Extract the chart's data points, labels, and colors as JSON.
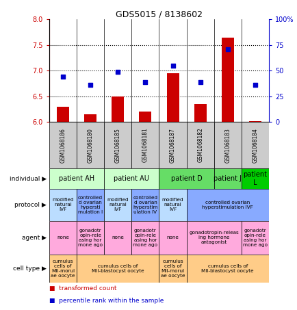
{
  "title": "GDS5015 / 8138602",
  "samples": [
    "GSM1068186",
    "GSM1068180",
    "GSM1068185",
    "GSM1068181",
    "GSM1068187",
    "GSM1068182",
    "GSM1068183",
    "GSM1068184"
  ],
  "bar_values": [
    6.3,
    6.15,
    6.5,
    6.2,
    6.95,
    6.35,
    7.65,
    6.02
  ],
  "dot_values": [
    6.88,
    6.72,
    6.98,
    6.78,
    7.1,
    6.78,
    7.42,
    6.72
  ],
  "ylim": [
    6.0,
    8.0
  ],
  "yticks": [
    6.0,
    6.5,
    7.0,
    7.5,
    8.0
  ],
  "y2ticks": [
    0,
    25,
    50,
    75,
    100
  ],
  "bar_color": "#cc0000",
  "dot_color": "#0000cc",
  "sample_bg_color": "#cccccc",
  "individual_row": {
    "groups": [
      {
        "label": "patient AH",
        "span": [
          0,
          2
        ],
        "color": "#ccffcc"
      },
      {
        "label": "patient AU",
        "span": [
          2,
          4
        ],
        "color": "#ccffcc"
      },
      {
        "label": "patient D",
        "span": [
          4,
          6
        ],
        "color": "#66dd66"
      },
      {
        "label": "patient J",
        "span": [
          6,
          7
        ],
        "color": "#66dd66"
      },
      {
        "label": "patient\nL",
        "span": [
          7,
          8
        ],
        "color": "#00cc00"
      }
    ]
  },
  "protocol_row": {
    "groups": [
      {
        "label": "modified\nnatural\nIVF",
        "span": [
          0,
          1
        ],
        "color": "#bbddff"
      },
      {
        "label": "controlled\nd ovarian\nhypersti\nmulation I",
        "span": [
          1,
          2
        ],
        "color": "#88aaff"
      },
      {
        "label": "modified\nnatural\nIVF",
        "span": [
          2,
          3
        ],
        "color": "#bbddff"
      },
      {
        "label": "controlled\nd ovarian\nhyperstim\nulation IV",
        "span": [
          3,
          4
        ],
        "color": "#88aaff"
      },
      {
        "label": "modified\nnatural\nIVF",
        "span": [
          4,
          5
        ],
        "color": "#bbddff"
      },
      {
        "label": "controlled ovarian\nhyperstimulation IVF",
        "span": [
          5,
          8
        ],
        "color": "#88aaff"
      }
    ]
  },
  "agent_row": {
    "groups": [
      {
        "label": "none",
        "span": [
          0,
          1
        ],
        "color": "#ffaadd"
      },
      {
        "label": "gonadotr\nopin-rele\nasing hor\nmone ago",
        "span": [
          1,
          2
        ],
        "color": "#ffaadd"
      },
      {
        "label": "none",
        "span": [
          2,
          3
        ],
        "color": "#ffaadd"
      },
      {
        "label": "gonadotr\nopin-rele\nasing hor\nmone ago",
        "span": [
          3,
          4
        ],
        "color": "#ffaadd"
      },
      {
        "label": "none",
        "span": [
          4,
          5
        ],
        "color": "#ffaadd"
      },
      {
        "label": "gonadotropin-releas\ning hormone\nantagonist",
        "span": [
          5,
          7
        ],
        "color": "#ffaadd"
      },
      {
        "label": "gonadotr\nopin-rele\nasing hor\nmone ago",
        "span": [
          7,
          8
        ],
        "color": "#ffaadd"
      }
    ]
  },
  "celltype_row": {
    "groups": [
      {
        "label": "cumulus\ncells of\nMII-morul\nae oocyte",
        "span": [
          0,
          1
        ],
        "color": "#ffcc88"
      },
      {
        "label": "cumulus cells of\nMII-blastocyst oocyte",
        "span": [
          1,
          4
        ],
        "color": "#ffcc88"
      },
      {
        "label": "cumulus\ncells of\nMII-morul\nae oocyte",
        "span": [
          4,
          5
        ],
        "color": "#ffcc88"
      },
      {
        "label": "cumulus cells of\nMII-blastocyst oocyte",
        "span": [
          5,
          8
        ],
        "color": "#ffcc88"
      }
    ]
  },
  "row_labels": [
    "individual",
    "protocol",
    "agent",
    "cell type"
  ],
  "legend": [
    {
      "label": "transformed count",
      "color": "#cc0000"
    },
    {
      "label": "percentile rank within the sample",
      "color": "#0000cc"
    }
  ]
}
